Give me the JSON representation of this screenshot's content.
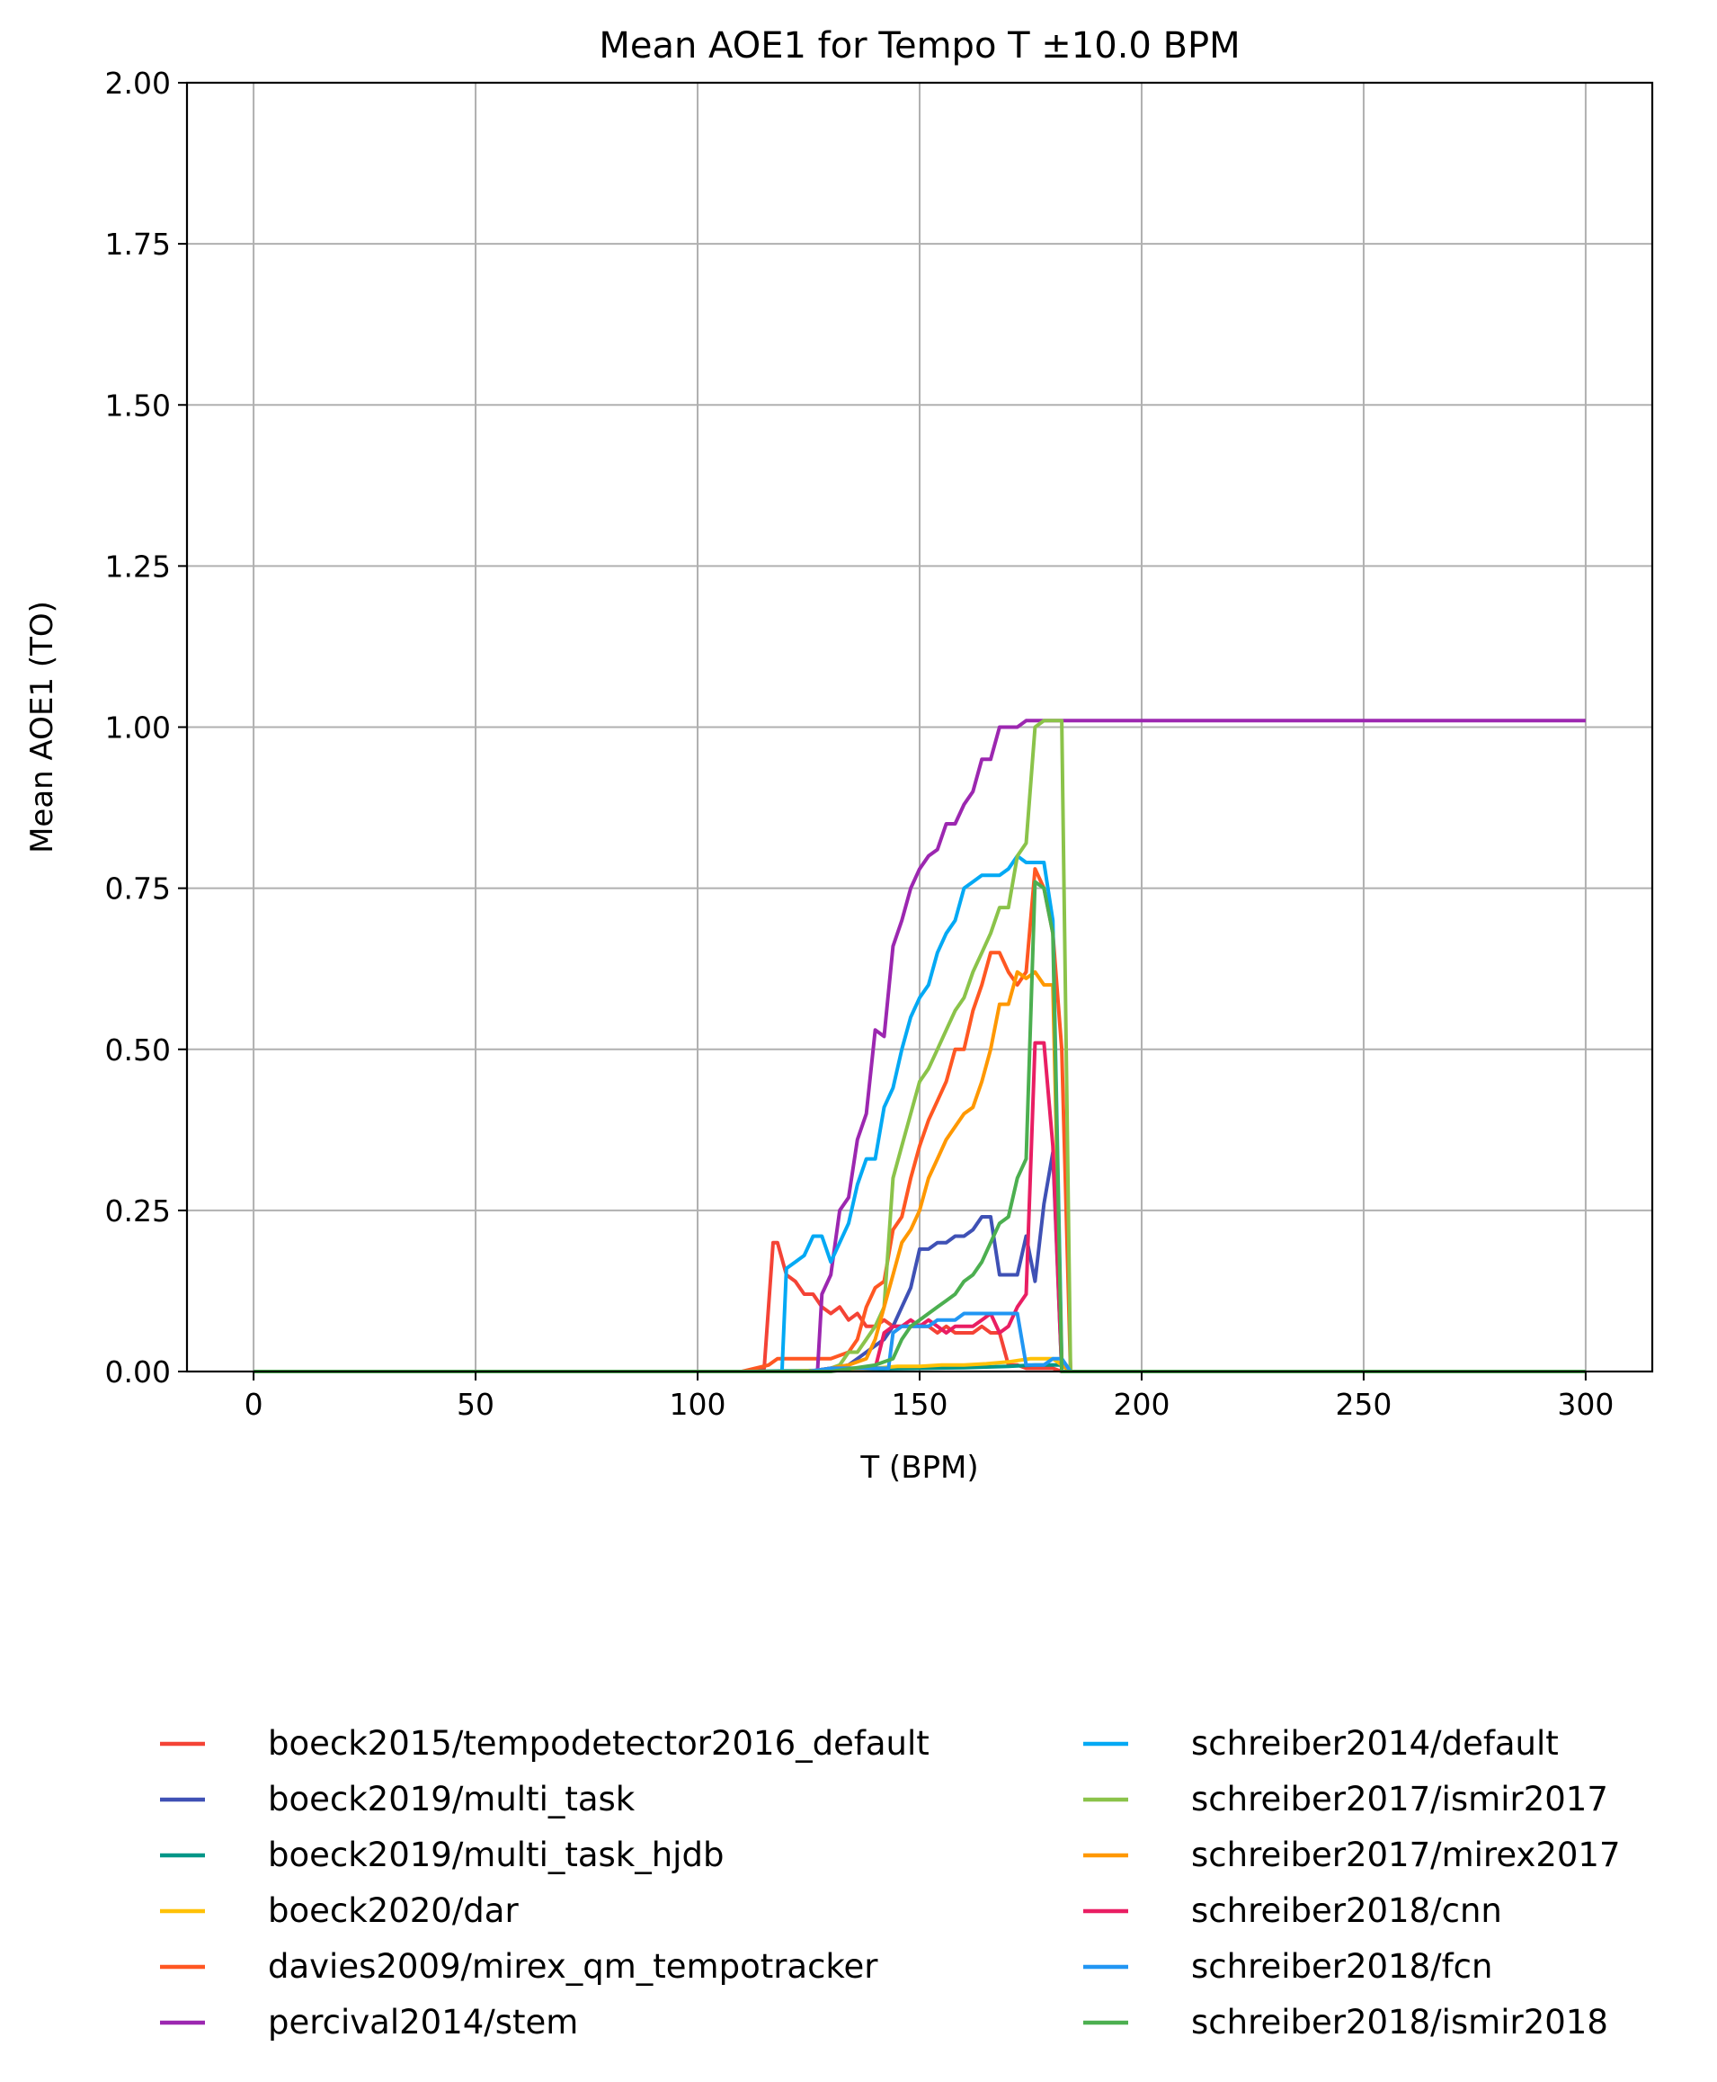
{
  "chart_data": {
    "type": "line",
    "title": "Mean AOE1 for Tempo T ±10.0 BPM",
    "xlabel": "T (BPM)",
    "ylabel": "Mean AOE1 (TO)",
    "xlim": [
      -15,
      315
    ],
    "ylim": [
      0,
      2.0
    ],
    "xticks": [
      0,
      50,
      100,
      150,
      200,
      250,
      300
    ],
    "xtick_labels": [
      "0",
      "50",
      "100",
      "150",
      "200",
      "250",
      "300"
    ],
    "yticks": [
      0,
      0.25,
      0.5,
      0.75,
      1.0,
      1.25,
      1.5,
      1.75,
      2.0
    ],
    "ytick_labels": [
      "0.00",
      "0.25",
      "0.50",
      "0.75",
      "1.00",
      "1.25",
      "1.50",
      "1.75",
      "2.00"
    ],
    "grid": true,
    "legend_position": "below",
    "series": [
      {
        "name": "boeck2015/tempodetector2016_default",
        "color": "#f44336",
        "x": [
          0,
          110,
          115,
          117,
          118,
          120,
          122,
          124,
          126,
          128,
          130,
          132,
          134,
          136,
          138,
          140,
          142,
          144,
          146,
          148,
          150,
          152,
          154,
          156,
          158,
          160,
          162,
          164,
          166,
          168,
          170,
          172,
          174,
          176,
          178,
          180,
          182,
          184,
          300
        ],
        "y": [
          0,
          0,
          0.005,
          0.2,
          0.2,
          0.15,
          0.14,
          0.12,
          0.12,
          0.1,
          0.09,
          0.1,
          0.08,
          0.09,
          0.07,
          0.07,
          0.08,
          0.07,
          0.07,
          0.07,
          0.07,
          0.07,
          0.06,
          0.07,
          0.06,
          0.06,
          0.06,
          0.07,
          0.06,
          0.06,
          0.01,
          0.01,
          0.005,
          0.005,
          0.005,
          0.005,
          0,
          0,
          0
        ]
      },
      {
        "name": "boeck2019/multi_task",
        "color": "#3f51b5",
        "x": [
          0,
          110,
          125,
          130,
          134,
          136,
          138,
          140,
          142,
          144,
          146,
          148,
          150,
          152,
          154,
          156,
          158,
          160,
          162,
          164,
          166,
          168,
          170,
          172,
          174,
          176,
          178,
          180,
          182,
          184,
          300
        ],
        "y": [
          0,
          0,
          0,
          0.005,
          0.01,
          0.02,
          0.03,
          0.04,
          0.05,
          0.07,
          0.1,
          0.13,
          0.19,
          0.19,
          0.2,
          0.2,
          0.21,
          0.21,
          0.22,
          0.24,
          0.24,
          0.15,
          0.15,
          0.15,
          0.21,
          0.14,
          0.26,
          0.34,
          0,
          0,
          0
        ]
      },
      {
        "name": "boeck2019/multi_task_hjdb",
        "color": "#009688",
        "x": [
          0,
          110,
          130,
          140,
          150,
          160,
          170,
          176,
          180,
          182,
          184,
          300
        ],
        "y": [
          0,
          0,
          0.002,
          0.004,
          0.005,
          0.006,
          0.008,
          0.01,
          0.01,
          0.01,
          0,
          0
        ]
      },
      {
        "name": "boeck2020/dar",
        "color": "#ffc107",
        "x": [
          0,
          120,
          130,
          140,
          145,
          150,
          155,
          160,
          165,
          170,
          175,
          180,
          182,
          184,
          300
        ],
        "y": [
          0,
          0,
          0.002,
          0.005,
          0.008,
          0.008,
          0.01,
          0.01,
          0.012,
          0.015,
          0.02,
          0.02,
          0.01,
          0,
          0
        ]
      },
      {
        "name": "davies2009/mirex_qm_tempotracker",
        "color": "#ff5722",
        "x": [
          0,
          110,
          116,
          118,
          120,
          125,
          130,
          134,
          136,
          138,
          140,
          142,
          144,
          146,
          148,
          150,
          152,
          154,
          156,
          158,
          160,
          162,
          164,
          166,
          168,
          170,
          172,
          174,
          176,
          178,
          180,
          182,
          184,
          300
        ],
        "y": [
          0,
          0,
          0.01,
          0.02,
          0.02,
          0.02,
          0.02,
          0.03,
          0.05,
          0.1,
          0.13,
          0.14,
          0.22,
          0.24,
          0.3,
          0.35,
          0.39,
          0.42,
          0.45,
          0.5,
          0.5,
          0.56,
          0.6,
          0.65,
          0.65,
          0.62,
          0.6,
          0.62,
          0.78,
          0.75,
          0.68,
          0.5,
          0,
          0
        ]
      },
      {
        "name": "percival2014/stem",
        "color": "#9c27b0",
        "x": [
          0,
          120,
          127,
          128,
          130,
          132,
          134,
          136,
          138,
          140,
          142,
          144,
          146,
          148,
          150,
          152,
          154,
          156,
          158,
          160,
          162,
          164,
          166,
          168,
          170,
          172,
          174,
          176,
          178,
          300
        ],
        "y": [
          0,
          0,
          0,
          0.12,
          0.15,
          0.25,
          0.27,
          0.36,
          0.4,
          0.53,
          0.52,
          0.66,
          0.7,
          0.75,
          0.78,
          0.8,
          0.81,
          0.85,
          0.85,
          0.88,
          0.9,
          0.95,
          0.95,
          1.0,
          1.0,
          1.0,
          1.01,
          1.01,
          1.01,
          1.01
        ]
      },
      {
        "name": "schreiber2014/default",
        "color": "#03a9f4",
        "x": [
          0,
          110,
          119,
          120,
          122,
          124,
          126,
          128,
          130,
          132,
          134,
          136,
          138,
          140,
          142,
          144,
          146,
          148,
          150,
          152,
          154,
          156,
          158,
          160,
          162,
          164,
          166,
          168,
          170,
          172,
          174,
          176,
          178,
          180,
          182,
          184,
          300
        ],
        "y": [
          0,
          0,
          0,
          0.16,
          0.17,
          0.18,
          0.21,
          0.21,
          0.17,
          0.2,
          0.23,
          0.29,
          0.33,
          0.33,
          0.41,
          0.44,
          0.5,
          0.55,
          0.58,
          0.6,
          0.65,
          0.68,
          0.7,
          0.75,
          0.76,
          0.77,
          0.77,
          0.77,
          0.78,
          0.8,
          0.79,
          0.79,
          0.79,
          0.7,
          0.02,
          0,
          0
        ]
      },
      {
        "name": "schreiber2017/ismir2017",
        "color": "#8bc34a",
        "x": [
          0,
          125,
          130,
          132,
          134,
          136,
          138,
          140,
          142,
          144,
          146,
          148,
          150,
          152,
          154,
          156,
          158,
          160,
          162,
          164,
          166,
          168,
          170,
          172,
          174,
          176,
          178,
          180,
          182,
          184,
          300
        ],
        "y": [
          0,
          0,
          0.005,
          0.01,
          0.03,
          0.03,
          0.05,
          0.07,
          0.1,
          0.3,
          0.35,
          0.4,
          0.45,
          0.47,
          0.5,
          0.53,
          0.56,
          0.58,
          0.62,
          0.65,
          0.68,
          0.72,
          0.72,
          0.8,
          0.82,
          1.0,
          1.01,
          1.01,
          1.01,
          0,
          0
        ]
      },
      {
        "name": "schreiber2017/mirex2017",
        "color": "#ff9800",
        "x": [
          0,
          125,
          130,
          134,
          138,
          140,
          142,
          144,
          146,
          148,
          150,
          152,
          154,
          156,
          158,
          160,
          162,
          164,
          166,
          168,
          170,
          172,
          174,
          176,
          178,
          180,
          182,
          184,
          300
        ],
        "y": [
          0,
          0,
          0.005,
          0.01,
          0.02,
          0.05,
          0.1,
          0.15,
          0.2,
          0.22,
          0.25,
          0.3,
          0.33,
          0.36,
          0.38,
          0.4,
          0.41,
          0.45,
          0.5,
          0.57,
          0.57,
          0.62,
          0.61,
          0.62,
          0.6,
          0.6,
          0.01,
          0,
          0
        ]
      },
      {
        "name": "schreiber2018/cnn",
        "color": "#e91e63",
        "x": [
          0,
          125,
          130,
          140,
          142,
          144,
          146,
          148,
          150,
          152,
          154,
          156,
          158,
          160,
          162,
          164,
          166,
          168,
          170,
          172,
          174,
          176,
          178,
          180,
          182,
          184,
          300
        ],
        "y": [
          0,
          0,
          0.005,
          0.005,
          0.06,
          0.07,
          0.07,
          0.08,
          0.07,
          0.08,
          0.07,
          0.06,
          0.07,
          0.07,
          0.07,
          0.08,
          0.09,
          0.06,
          0.07,
          0.1,
          0.12,
          0.51,
          0.51,
          0.35,
          0,
          0,
          0
        ]
      },
      {
        "name": "schreiber2018/fcn",
        "color": "#2196f3",
        "x": [
          0,
          125,
          130,
          140,
          143,
          144,
          146,
          148,
          150,
          152,
          154,
          156,
          158,
          160,
          162,
          164,
          166,
          168,
          170,
          172,
          174,
          176,
          178,
          180,
          182,
          184,
          300
        ],
        "y": [
          0,
          0,
          0.005,
          0.005,
          0.005,
          0.06,
          0.07,
          0.07,
          0.07,
          0.07,
          0.08,
          0.08,
          0.08,
          0.09,
          0.09,
          0.09,
          0.09,
          0.09,
          0.09,
          0.09,
          0.01,
          0.01,
          0.01,
          0.02,
          0.02,
          0,
          0
        ]
      },
      {
        "name": "schreiber2018/ismir2018",
        "color": "#4caf50",
        "x": [
          0,
          130,
          140,
          144,
          146,
          148,
          150,
          152,
          154,
          156,
          158,
          160,
          162,
          164,
          166,
          168,
          170,
          172,
          174,
          176,
          178,
          180,
          182,
          184,
          300
        ],
        "y": [
          0,
          0,
          0.01,
          0.02,
          0.05,
          0.07,
          0.08,
          0.09,
          0.1,
          0.11,
          0.12,
          0.14,
          0.15,
          0.17,
          0.2,
          0.23,
          0.24,
          0.3,
          0.33,
          0.76,
          0.75,
          0.68,
          0,
          0,
          0
        ]
      }
    ]
  }
}
